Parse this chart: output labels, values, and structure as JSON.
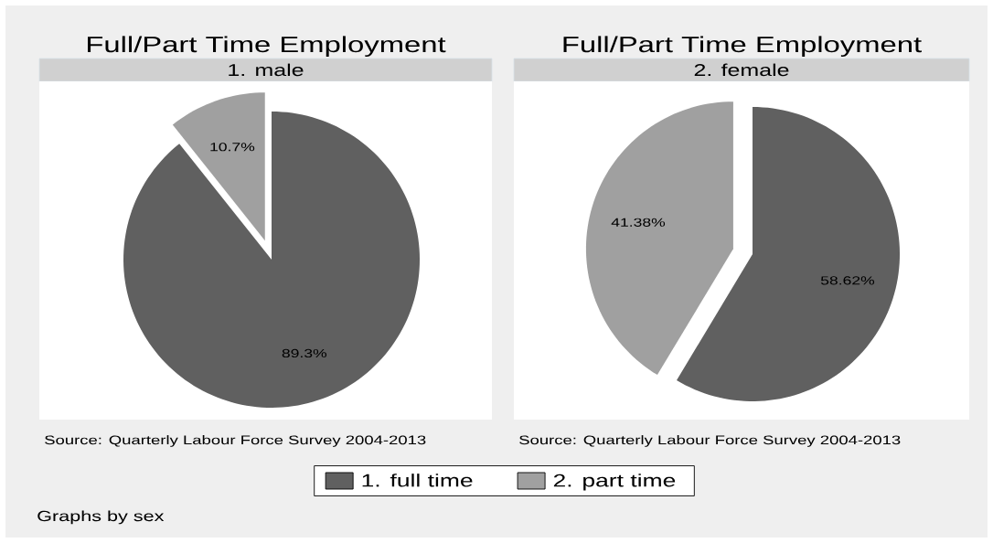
{
  "chart_data": [
    {
      "type": "pie",
      "title": "Full/Part Time Employment",
      "subtitle": "1. male",
      "categories": [
        "1. full time",
        "2. part time"
      ],
      "values": [
        89.3,
        10.7
      ],
      "colors": [
        "#606060",
        "#a0a0a0"
      ],
      "value_labels": [
        "89.3%",
        "10.7%"
      ],
      "legend": "bottom",
      "annotations": [
        "Source: Quarterly Labour Force Survey 2004-2013",
        "Graphs by sex"
      ]
    },
    {
      "type": "pie",
      "title": "Full/Part Time Employment",
      "subtitle": "2. female",
      "categories": [
        null,
        null
      ],
      "values": [
        58.62,
        41.38
      ],
      "colors": [
        "#606060",
        "#a0a0a0"
      ],
      "value_labels": [
        "58.62%",
        "41.38%"
      ],
      "annotations": [
        "Source: Quarterly Labour Force Survey 2004-2013"
      ]
    }
  ]
}
